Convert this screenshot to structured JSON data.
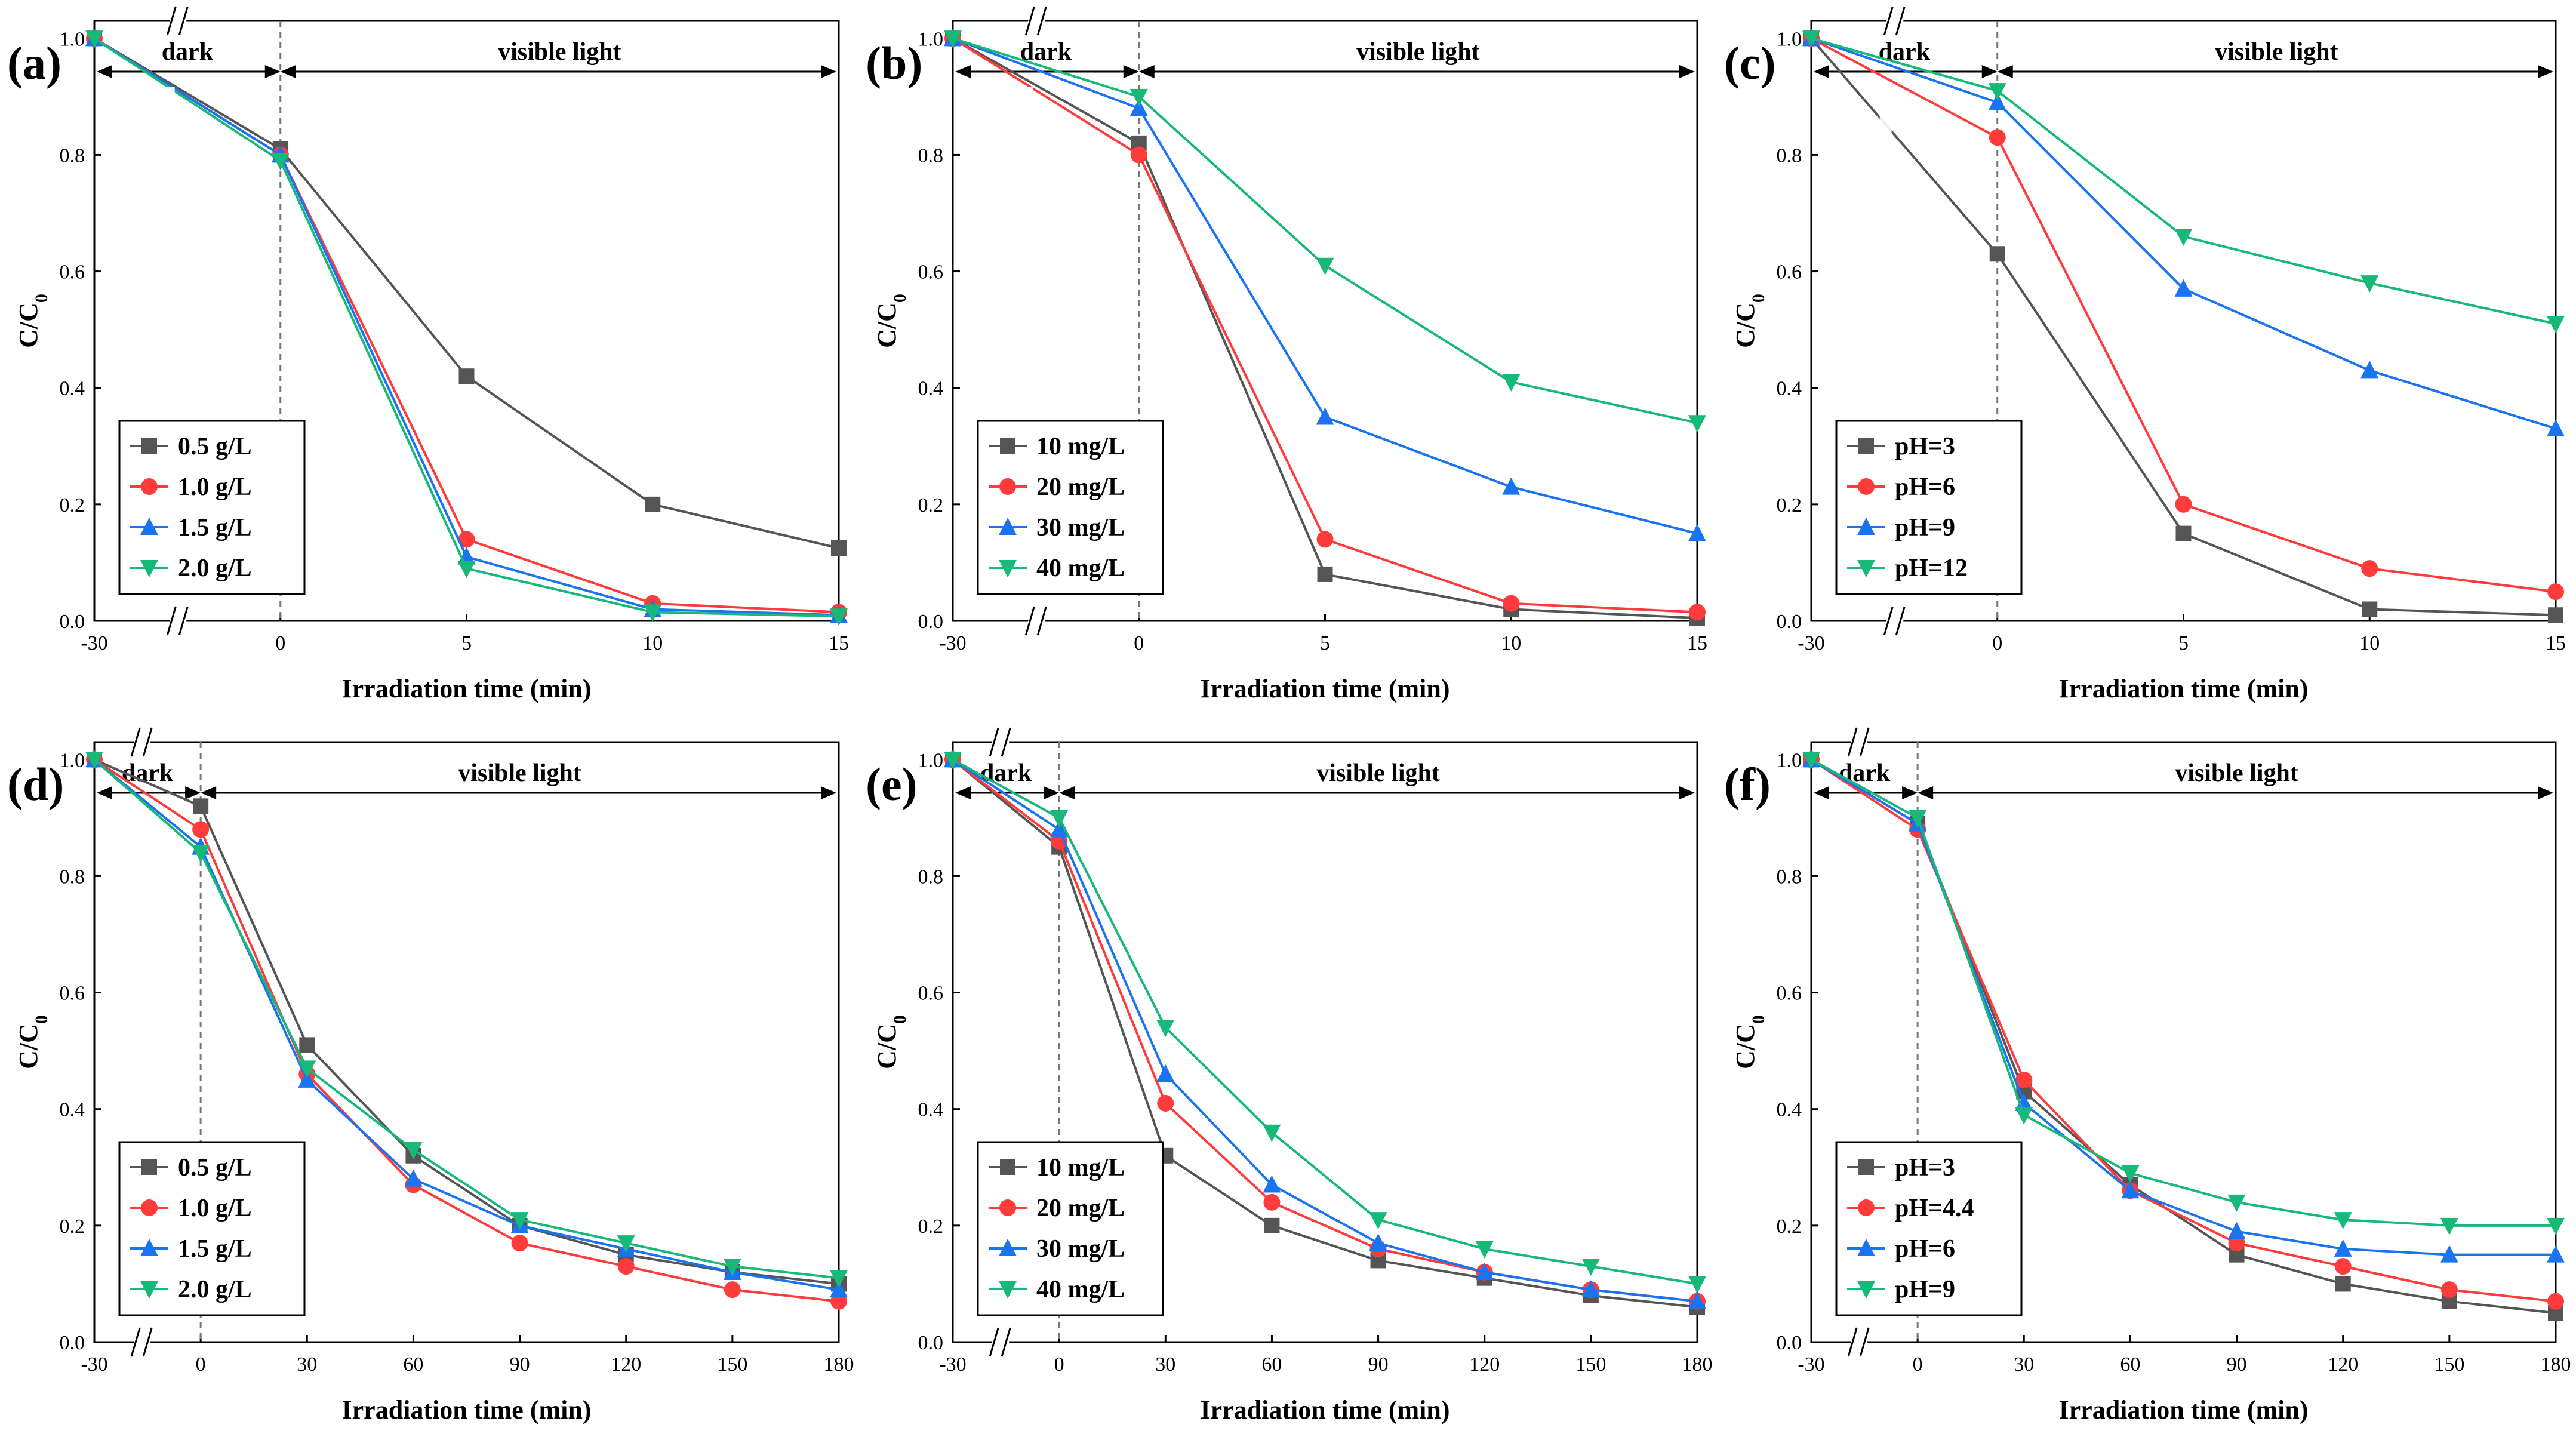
{
  "figure": {
    "axis_break_symbol": "//"
  },
  "colors": {
    "s1": "#555555",
    "s2": "#ff3b3b",
    "s3": "#1a74f2",
    "s4": "#17b978"
  },
  "chart_data": [
    {
      "panel": "(a)",
      "type": "line",
      "xlabel": "Irradiation time (min)",
      "ylabel": "C/C",
      "ylabel_sub": "0",
      "dark_label": "dark",
      "light_label": "visible light",
      "x": [
        -30,
        0,
        5,
        10,
        15
      ],
      "x_ticks": [
        "-30",
        "0",
        "5",
        "10",
        "15"
      ],
      "y_ticks": [
        "0.0",
        "0.2",
        "0.4",
        "0.6",
        "0.8",
        "1.0"
      ],
      "ylim": [
        0,
        1.03
      ],
      "series": [
        {
          "name": "0.5 g/L",
          "marker": "square",
          "values": [
            1.0,
            0.81,
            0.42,
            0.2,
            0.125
          ]
        },
        {
          "name": "1.0 g/L",
          "marker": "circle",
          "values": [
            1.0,
            0.8,
            0.14,
            0.03,
            0.015
          ]
        },
        {
          "name": "1.5 g/L",
          "marker": "triangle-up",
          "values": [
            1.0,
            0.8,
            0.11,
            0.02,
            0.01
          ]
        },
        {
          "name": "2.0 g/L",
          "marker": "triangle-down",
          "values": [
            1.0,
            0.79,
            0.09,
            0.015,
            0.008
          ]
        }
      ]
    },
    {
      "panel": "(b)",
      "type": "line",
      "xlabel": "Irradiation time (min)",
      "ylabel": "C/C",
      "ylabel_sub": "0",
      "dark_label": "dark",
      "light_label": "visible light",
      "x": [
        -30,
        0,
        5,
        10,
        15
      ],
      "x_ticks": [
        "-30",
        "0",
        "5",
        "10",
        "15"
      ],
      "y_ticks": [
        "0.0",
        "0.2",
        "0.4",
        "0.6",
        "0.8",
        "1.0"
      ],
      "ylim": [
        0,
        1.03
      ],
      "series": [
        {
          "name": "10 mg/L",
          "marker": "square",
          "values": [
            1.0,
            0.82,
            0.08,
            0.02,
            0.005
          ]
        },
        {
          "name": "20 mg/L",
          "marker": "circle",
          "values": [
            1.0,
            0.8,
            0.14,
            0.03,
            0.015
          ]
        },
        {
          "name": "30 mg/L",
          "marker": "triangle-up",
          "values": [
            1.0,
            0.88,
            0.35,
            0.23,
            0.15
          ]
        },
        {
          "name": "40 mg/L",
          "marker": "triangle-down",
          "values": [
            1.0,
            0.9,
            0.61,
            0.41,
            0.34
          ]
        }
      ]
    },
    {
      "panel": "(c)",
      "type": "line",
      "xlabel": "Irradiation time (min)",
      "ylabel": "C/C",
      "ylabel_sub": "0",
      "dark_label": "dark",
      "light_label": "visible light",
      "x": [
        -30,
        0,
        5,
        10,
        15
      ],
      "x_ticks": [
        "-30",
        "0",
        "5",
        "10",
        "15"
      ],
      "y_ticks": [
        "0.0",
        "0.2",
        "0.4",
        "0.6",
        "0.8",
        "1.0"
      ],
      "ylim": [
        0,
        1.03
      ],
      "series": [
        {
          "name": "pH=3",
          "marker": "square",
          "values": [
            1.0,
            0.63,
            0.15,
            0.02,
            0.01
          ]
        },
        {
          "name": "pH=6",
          "marker": "circle",
          "values": [
            1.0,
            0.83,
            0.2,
            0.09,
            0.05
          ]
        },
        {
          "name": "pH=9",
          "marker": "triangle-up",
          "values": [
            1.0,
            0.89,
            0.57,
            0.43,
            0.33
          ]
        },
        {
          "name": "pH=12",
          "marker": "triangle-down",
          "values": [
            1.0,
            0.91,
            0.66,
            0.58,
            0.51
          ]
        }
      ]
    },
    {
      "panel": "(d)",
      "type": "line",
      "xlabel": "Irradiation time (min)",
      "ylabel": "C/C",
      "ylabel_sub": "0",
      "dark_label": "dark",
      "light_label": "visible light",
      "x": [
        -30,
        0,
        30,
        60,
        90,
        120,
        150,
        180
      ],
      "x_ticks": [
        "-30",
        "0",
        "30",
        "60",
        "90",
        "120",
        "150",
        "180"
      ],
      "y_ticks": [
        "0.0",
        "0.2",
        "0.4",
        "0.6",
        "0.8",
        "1.0"
      ],
      "ylim": [
        0,
        1.03
      ],
      "series": [
        {
          "name": "0.5 g/L",
          "marker": "square",
          "values": [
            1.0,
            0.92,
            0.51,
            0.32,
            0.2,
            0.15,
            0.12,
            0.1
          ]
        },
        {
          "name": "1.0 g/L",
          "marker": "circle",
          "values": [
            1.0,
            0.88,
            0.46,
            0.27,
            0.17,
            0.13,
            0.09,
            0.07
          ]
        },
        {
          "name": "1.5 g/L",
          "marker": "triangle-up",
          "values": [
            1.0,
            0.85,
            0.45,
            0.28,
            0.2,
            0.16,
            0.12,
            0.09
          ]
        },
        {
          "name": "2.0 g/L",
          "marker": "triangle-down",
          "values": [
            1.0,
            0.84,
            0.47,
            0.33,
            0.21,
            0.17,
            0.13,
            0.11
          ]
        }
      ]
    },
    {
      "panel": "(e)",
      "type": "line",
      "xlabel": "Irradiation time (min)",
      "ylabel": "C/C",
      "ylabel_sub": "0",
      "dark_label": "dark",
      "light_label": "visible light",
      "x": [
        -30,
        0,
        30,
        60,
        90,
        120,
        150,
        180
      ],
      "x_ticks": [
        "-30",
        "0",
        "30",
        "60",
        "90",
        "120",
        "150",
        "180"
      ],
      "y_ticks": [
        "0.0",
        "0.2",
        "0.4",
        "0.6",
        "0.8",
        "1.0"
      ],
      "ylim": [
        0,
        1.03
      ],
      "series": [
        {
          "name": "10 mg/L",
          "marker": "square",
          "values": [
            1.0,
            0.85,
            0.32,
            0.2,
            0.14,
            0.11,
            0.08,
            0.06
          ]
        },
        {
          "name": "20 mg/L",
          "marker": "circle",
          "values": [
            1.0,
            0.86,
            0.41,
            0.24,
            0.16,
            0.12,
            0.09,
            0.07
          ]
        },
        {
          "name": "30 mg/L",
          "marker": "triangle-up",
          "values": [
            1.0,
            0.88,
            0.46,
            0.27,
            0.17,
            0.12,
            0.09,
            0.07
          ]
        },
        {
          "name": "40 mg/L",
          "marker": "triangle-down",
          "values": [
            1.0,
            0.9,
            0.54,
            0.36,
            0.21,
            0.16,
            0.13,
            0.1
          ]
        }
      ]
    },
    {
      "panel": "(f)",
      "type": "line",
      "xlabel": "Irradiation time (min)",
      "ylabel": "C/C",
      "ylabel_sub": "0",
      "dark_label": "dark",
      "light_label": "visible light",
      "x": [
        -30,
        0,
        30,
        60,
        90,
        120,
        150,
        180
      ],
      "x_ticks": [
        "-30",
        "0",
        "30",
        "60",
        "90",
        "120",
        "150",
        "180"
      ],
      "y_ticks": [
        "0.0",
        "0.2",
        "0.4",
        "0.6",
        "0.8",
        "1.0"
      ],
      "ylim": [
        0,
        1.03
      ],
      "series": [
        {
          "name": "pH=3",
          "marker": "square",
          "values": [
            1.0,
            0.89,
            0.43,
            0.27,
            0.15,
            0.1,
            0.07,
            0.05
          ]
        },
        {
          "name": "pH=4.4",
          "marker": "circle",
          "values": [
            1.0,
            0.88,
            0.45,
            0.26,
            0.17,
            0.13,
            0.09,
            0.07
          ]
        },
        {
          "name": "pH=6",
          "marker": "triangle-up",
          "values": [
            1.0,
            0.89,
            0.41,
            0.26,
            0.19,
            0.16,
            0.15,
            0.15
          ]
        },
        {
          "name": "pH=9",
          "marker": "triangle-down",
          "values": [
            1.0,
            0.9,
            0.39,
            0.29,
            0.24,
            0.21,
            0.2,
            0.2
          ]
        }
      ]
    }
  ]
}
